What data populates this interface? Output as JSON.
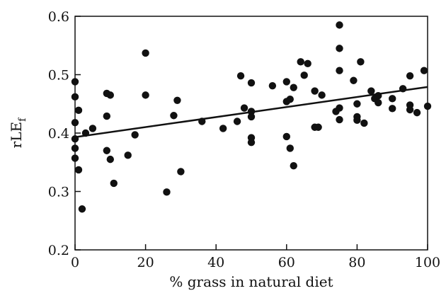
{
  "chart_data": {
    "type": "scatter",
    "title": "",
    "xlabel": "% grass in natural diet",
    "ylabel": {
      "main": "rLE",
      "subscript": "f"
    },
    "xlim": [
      0,
      100
    ],
    "ylim": [
      0.2,
      0.6
    ],
    "x_ticks": [
      "0",
      "20",
      "40",
      "60",
      "80",
      "100"
    ],
    "y_ticks": [
      "0.2",
      "0.3",
      "0.4",
      "0.5",
      "0.6"
    ],
    "grid": false,
    "legend": "none",
    "trendline": {
      "x": [
        0,
        100
      ],
      "y": [
        0.393,
        0.479
      ]
    },
    "marker_color": "#111111",
    "points": [
      {
        "x": 0,
        "y": 0.488
      },
      {
        "x": 0,
        "y": 0.462
      },
      {
        "x": 0,
        "y": 0.418
      },
      {
        "x": 0,
        "y": 0.39
      },
      {
        "x": 0,
        "y": 0.374
      },
      {
        "x": 0,
        "y": 0.357
      },
      {
        "x": 1,
        "y": 0.439
      },
      {
        "x": 1,
        "y": 0.337
      },
      {
        "x": 2,
        "y": 0.27
      },
      {
        "x": 3,
        "y": 0.4
      },
      {
        "x": 5,
        "y": 0.408
      },
      {
        "x": 9,
        "y": 0.468
      },
      {
        "x": 9,
        "y": 0.429
      },
      {
        "x": 9,
        "y": 0.37
      },
      {
        "x": 10,
        "y": 0.465
      },
      {
        "x": 10,
        "y": 0.355
      },
      {
        "x": 11,
        "y": 0.314
      },
      {
        "x": 15,
        "y": 0.362
      },
      {
        "x": 17,
        "y": 0.397
      },
      {
        "x": 20,
        "y": 0.537
      },
      {
        "x": 20,
        "y": 0.465
      },
      {
        "x": 26,
        "y": 0.299
      },
      {
        "x": 28,
        "y": 0.43
      },
      {
        "x": 29,
        "y": 0.456
      },
      {
        "x": 30,
        "y": 0.334
      },
      {
        "x": 36,
        "y": 0.42
      },
      {
        "x": 42,
        "y": 0.408
      },
      {
        "x": 46,
        "y": 0.42
      },
      {
        "x": 47,
        "y": 0.498
      },
      {
        "x": 48,
        "y": 0.443
      },
      {
        "x": 50,
        "y": 0.486
      },
      {
        "x": 50,
        "y": 0.437
      },
      {
        "x": 50,
        "y": 0.428
      },
      {
        "x": 50,
        "y": 0.392
      },
      {
        "x": 50,
        "y": 0.384
      },
      {
        "x": 56,
        "y": 0.481
      },
      {
        "x": 60,
        "y": 0.488
      },
      {
        "x": 60,
        "y": 0.454
      },
      {
        "x": 60,
        "y": 0.394
      },
      {
        "x": 61,
        "y": 0.458
      },
      {
        "x": 61,
        "y": 0.374
      },
      {
        "x": 62,
        "y": 0.478
      },
      {
        "x": 62,
        "y": 0.344
      },
      {
        "x": 64,
        "y": 0.522
      },
      {
        "x": 65,
        "y": 0.499
      },
      {
        "x": 66,
        "y": 0.519
      },
      {
        "x": 68,
        "y": 0.472
      },
      {
        "x": 68,
        "y": 0.41
      },
      {
        "x": 69,
        "y": 0.41
      },
      {
        "x": 70,
        "y": 0.465
      },
      {
        "x": 74,
        "y": 0.437
      },
      {
        "x": 75,
        "y": 0.585
      },
      {
        "x": 75,
        "y": 0.545
      },
      {
        "x": 75,
        "y": 0.507
      },
      {
        "x": 75,
        "y": 0.443
      },
      {
        "x": 75,
        "y": 0.423
      },
      {
        "x": 79,
        "y": 0.49
      },
      {
        "x": 80,
        "y": 0.45
      },
      {
        "x": 80,
        "y": 0.428
      },
      {
        "x": 80,
        "y": 0.422
      },
      {
        "x": 81,
        "y": 0.522
      },
      {
        "x": 82,
        "y": 0.417
      },
      {
        "x": 84,
        "y": 0.472
      },
      {
        "x": 85,
        "y": 0.459
      },
      {
        "x": 86,
        "y": 0.464
      },
      {
        "x": 86,
        "y": 0.452
      },
      {
        "x": 90,
        "y": 0.459
      },
      {
        "x": 90,
        "y": 0.442
      },
      {
        "x": 93,
        "y": 0.476
      },
      {
        "x": 95,
        "y": 0.498
      },
      {
        "x": 95,
        "y": 0.448
      },
      {
        "x": 95,
        "y": 0.44
      },
      {
        "x": 97,
        "y": 0.435
      },
      {
        "x": 99,
        "y": 0.507
      },
      {
        "x": 100,
        "y": 0.446
      }
    ]
  }
}
